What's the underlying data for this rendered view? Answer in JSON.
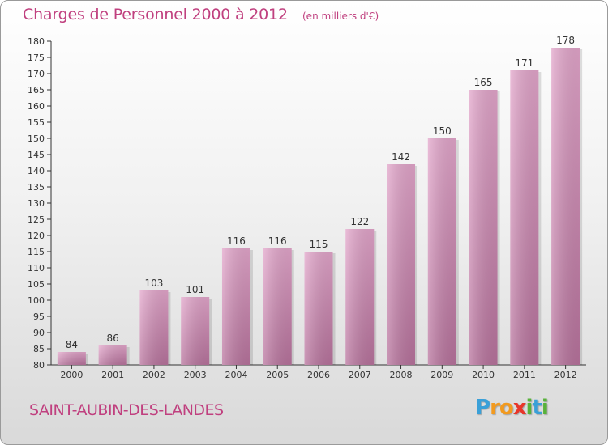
{
  "title": "Charges de Personnel 2000 à 2012",
  "subtitle": "(en milliers d'€)",
  "commune": "SAINT-AUBIN-DES-LANDES",
  "logo": {
    "letters": [
      "P",
      "r",
      "o",
      "x",
      "i",
      "t",
      "i"
    ],
    "colors": [
      "#3aa0d8",
      "#f29a1f",
      "#f29a1f",
      "#e8362a",
      "#58b23a",
      "#3aa0d8",
      "#58b23a"
    ]
  },
  "colors": {
    "bar_top": "#e3a6cb",
    "bar_bottom": "#b8739d",
    "text": "#c0407f",
    "axis": "#333333"
  },
  "chart_data": {
    "type": "bar",
    "categories": [
      "2000",
      "2001",
      "2002",
      "2003",
      "2004",
      "2005",
      "2006",
      "2007",
      "2008",
      "2009",
      "2010",
      "2011",
      "2012"
    ],
    "values": [
      84,
      86,
      103,
      101,
      116,
      116,
      115,
      122,
      142,
      150,
      165,
      171,
      178
    ],
    "title": "Charges de Personnel 2000 à 2012",
    "subtitle": "(en milliers d'€)",
    "ylim": [
      80,
      180
    ],
    "yticks": [
      80,
      85,
      90,
      95,
      100,
      105,
      110,
      115,
      120,
      125,
      130,
      135,
      140,
      145,
      150,
      155,
      160,
      165,
      170,
      175,
      180
    ],
    "grid": false,
    "data_labels": true
  }
}
